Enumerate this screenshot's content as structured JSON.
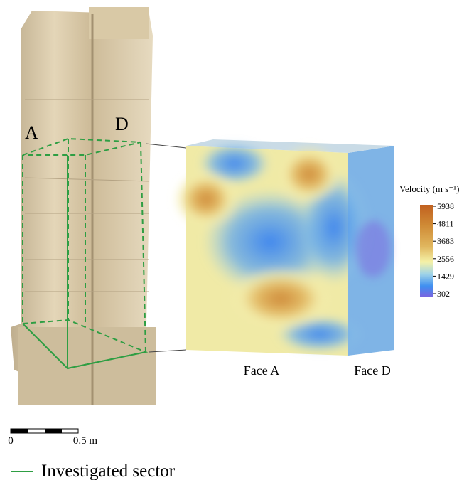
{
  "pillar": {
    "face_labels": [
      "A",
      "D"
    ]
  },
  "model": {
    "face_labels": [
      "Face A",
      "Face D"
    ]
  },
  "colorbar": {
    "title": "Velocity (m s⁻¹)",
    "ticks": [
      5938,
      4811,
      3683,
      2556,
      1429,
      302
    ]
  },
  "scale_bar": {
    "labels": [
      "0",
      "0.5 m"
    ]
  },
  "legend": {
    "label": "Investigated sector"
  }
}
